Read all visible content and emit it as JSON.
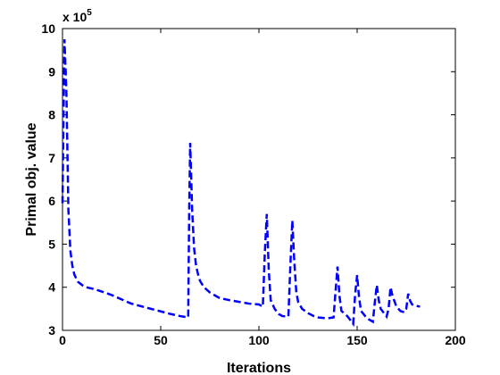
{
  "chart_data": {
    "type": "line",
    "xlabel": "Iterations",
    "ylabel": "Primal obj. value",
    "y_multiplier_label": "x 10",
    "y_multiplier_exponent": "5",
    "xlim": [
      0,
      200
    ],
    "ylim": [
      3,
      10
    ],
    "x_ticks": [
      0,
      50,
      100,
      150,
      200
    ],
    "y_ticks": [
      3,
      4,
      5,
      6,
      7,
      8,
      9,
      10
    ],
    "grid": false,
    "line_color": "#0000ff",
    "line_style": "dashed",
    "series": [
      {
        "x": [
          0,
          1,
          2,
          3,
          4,
          5,
          6,
          7,
          8,
          10,
          12,
          15,
          18,
          20,
          25,
          30,
          35,
          40,
          45,
          50,
          55,
          60,
          64,
          64.5,
          65,
          66,
          67,
          68,
          69,
          70,
          72,
          75,
          78,
          80,
          85,
          90,
          95,
          100,
          102,
          103,
          104,
          105,
          106,
          108,
          110,
          112,
          115,
          116,
          117,
          118,
          119,
          120,
          122,
          125,
          128,
          130,
          135,
          138,
          139,
          140,
          141,
          142,
          145,
          148,
          149,
          150,
          151,
          152,
          155,
          158,
          159,
          160,
          161,
          162,
          165,
          166,
          167,
          168,
          170,
          172,
          174,
          175,
          176,
          177,
          178,
          180,
          182
        ],
        "y": [
          5.95,
          9.75,
          8.5,
          5.8,
          4.85,
          4.5,
          4.3,
          4.2,
          4.12,
          4.05,
          4.0,
          3.97,
          3.93,
          3.9,
          3.82,
          3.72,
          3.62,
          3.56,
          3.5,
          3.44,
          3.38,
          3.33,
          3.3,
          5.8,
          7.35,
          5.8,
          4.9,
          4.5,
          4.3,
          4.15,
          4.0,
          3.88,
          3.8,
          3.75,
          3.7,
          3.66,
          3.62,
          3.6,
          3.55,
          4.8,
          5.7,
          4.4,
          3.7,
          3.5,
          3.38,
          3.33,
          3.32,
          4.5,
          5.55,
          4.6,
          3.9,
          3.65,
          3.5,
          3.4,
          3.33,
          3.3,
          3.28,
          3.3,
          3.9,
          4.48,
          3.8,
          3.45,
          3.33,
          3.15,
          3.85,
          4.28,
          3.75,
          3.45,
          3.28,
          3.2,
          3.65,
          4.05,
          3.7,
          3.5,
          3.32,
          3.5,
          4.0,
          3.8,
          3.55,
          3.45,
          3.42,
          3.5,
          3.85,
          3.68,
          3.6,
          3.57,
          3.55
        ]
      }
    ]
  }
}
